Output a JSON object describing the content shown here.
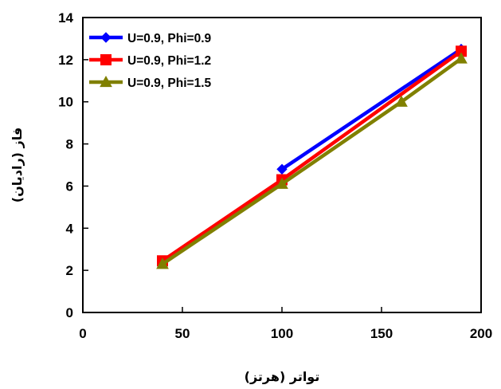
{
  "chart_data": {
    "type": "line",
    "xlabel": "تواتر (هرتز)",
    "ylabel": "فاز (رادیان)",
    "xlim": [
      0,
      200
    ],
    "ylim": [
      0,
      14
    ],
    "xticks": [
      0,
      50,
      100,
      150,
      200
    ],
    "yticks": [
      0,
      2,
      4,
      6,
      8,
      10,
      12,
      14
    ],
    "grid": false,
    "legend_position": "top-left",
    "series": [
      {
        "name": "U=0.9, Phi=0.9",
        "color": "#0000FF",
        "marker": "diamond",
        "points": [
          [
            100,
            6.8
          ],
          [
            190,
            12.5
          ]
        ]
      },
      {
        "name": "U=0.9, Phi=1.2",
        "color": "#FF0000",
        "marker": "square",
        "points": [
          [
            40,
            2.45
          ],
          [
            100,
            6.3
          ],
          [
            190,
            12.4
          ]
        ]
      },
      {
        "name": "U=0.9, Phi=1.5",
        "color": "#808000",
        "marker": "triangle",
        "points": [
          [
            40,
            2.3
          ],
          [
            100,
            6.1
          ],
          [
            160,
            10.0
          ],
          [
            190,
            12.05
          ]
        ]
      }
    ]
  }
}
